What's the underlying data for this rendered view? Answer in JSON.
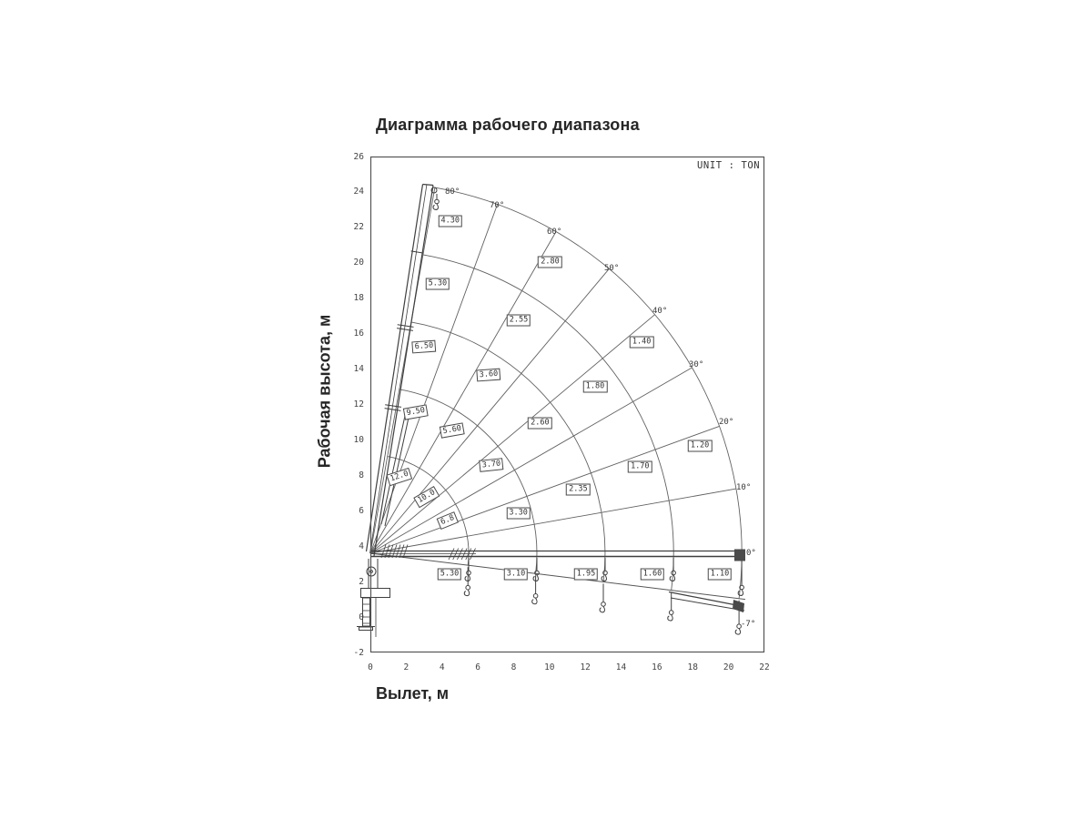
{
  "title": "Диаграмма рабочего диапазона",
  "unit_label": "UNIT : TON",
  "x_axis": {
    "label": "Вылет, м",
    "ticks": [
      "0",
      "2",
      "4",
      "6",
      "8",
      "10",
      "12",
      "14",
      "16",
      "18",
      "20",
      "22"
    ]
  },
  "y_axis": {
    "label": "Рабочая высота, м",
    "ticks": [
      "26",
      "24",
      "22",
      "20",
      "18",
      "16",
      "14",
      "12",
      "10",
      "8",
      "6",
      "4",
      "2",
      "0",
      "-2"
    ]
  },
  "chart_data": {
    "type": "line",
    "subtype": "crane-working-range-polar-load-chart",
    "title": "Диаграмма рабочего диапазона",
    "xlabel": "Вылет, м",
    "ylabel": "Рабочая высота, м",
    "unit": "TON",
    "xlim": [
      0,
      22
    ],
    "ylim": [
      -2,
      26
    ],
    "grid": "polar (boom-angle radials + boom-extension arcs)",
    "pivot": {
      "x_m": 0,
      "height_m": 3.6
    },
    "boom_angle_lines_deg": [
      80,
      70,
      60,
      50,
      40,
      30,
      20,
      10,
      0,
      -7
    ],
    "boom_extension_arcs_m": [
      5.52,
      9.35,
      13.18,
      17.02,
      20.85
    ],
    "angle_labels": [
      {
        "text": "80°",
        "x": 489,
        "y": 206
      },
      {
        "text": "70°",
        "x": 538,
        "y": 221
      },
      {
        "text": "60°",
        "x": 601,
        "y": 250
      },
      {
        "text": "50°",
        "x": 664,
        "y": 290
      },
      {
        "text": "40°",
        "x": 717,
        "y": 337
      },
      {
        "text": "30°",
        "x": 757,
        "y": 396
      },
      {
        "text": "20°",
        "x": 790,
        "y": 459
      },
      {
        "text": "10°",
        "x": 809,
        "y": 531
      },
      {
        "text": "0°",
        "x": 820,
        "y": 603
      },
      {
        "text": "-7°",
        "x": 814,
        "y": 681
      }
    ],
    "capacity_rings": [
      {
        "boom_length_m": 5.52,
        "points": [
          {
            "angle_deg": 69,
            "r_m": 4.6,
            "value": "12.0",
            "rot": -18
          },
          {
            "angle_deg": 45,
            "r_m": 4.5,
            "value": "10.0",
            "rot": -30
          },
          {
            "angle_deg": 23,
            "r_m": 4.7,
            "value": "6.8",
            "rot": -22
          }
        ]
      },
      {
        "boom_length_m": 9.35,
        "points": [
          {
            "angle_deg": 72,
            "r_m": 8.3,
            "value": "9.50",
            "rot": -10
          },
          {
            "angle_deg": 56.5,
            "r_m": 8.3,
            "value": "5.60",
            "rot": -10
          },
          {
            "angle_deg": 36,
            "r_m": 8.4,
            "value": "3.70",
            "rot": -6
          },
          {
            "angle_deg": 15,
            "r_m": 8.6,
            "value": "3.30",
            "rot": 0
          }
        ]
      },
      {
        "boom_length_m": 13.18,
        "points": [
          {
            "angle_deg": 75.5,
            "r_m": 12.0,
            "value": "6.50",
            "rot": -4
          },
          {
            "angle_deg": 56.5,
            "r_m": 12.0,
            "value": "3.60",
            "rot": -4
          },
          {
            "angle_deg": 37.5,
            "r_m": 12.0,
            "value": "2.60",
            "rot": 0
          },
          {
            "angle_deg": 17,
            "r_m": 12.2,
            "value": "2.35",
            "rot": 0
          }
        ]
      },
      {
        "boom_length_m": 17.02,
        "points": [
          {
            "angle_deg": 76,
            "r_m": 15.6,
            "value": "5.30",
            "rot": 0
          },
          {
            "angle_deg": 57.5,
            "r_m": 15.5,
            "value": "2.55",
            "rot": 0
          },
          {
            "angle_deg": 36.5,
            "r_m": 15.7,
            "value": "1.80",
            "rot": 0
          },
          {
            "angle_deg": 17.8,
            "r_m": 15.9,
            "value": "1.70",
            "rot": 0
          }
        ]
      },
      {
        "boom_length_m": 20.85,
        "points": [
          {
            "angle_deg": 76.5,
            "r_m": 19.2,
            "value": "4.30",
            "rot": 0
          },
          {
            "angle_deg": 58.3,
            "r_m": 19.2,
            "value": "2.80",
            "rot": 0
          },
          {
            "angle_deg": 37.9,
            "r_m": 19.3,
            "value": "1.40",
            "rot": 0
          },
          {
            "angle_deg": 18,
            "r_m": 19.45,
            "value": "1.20",
            "rot": 0
          }
        ]
      }
    ],
    "low_boom_capacities": [
      {
        "x_m": 4.42,
        "value": "5.30"
      },
      {
        "x_m": 8.13,
        "value": "3.10"
      },
      {
        "x_m": 12.04,
        "value": "1.95"
      },
      {
        "x_m": 15.75,
        "value": "1.60"
      },
      {
        "x_m": 19.51,
        "value": "1.10"
      }
    ]
  }
}
